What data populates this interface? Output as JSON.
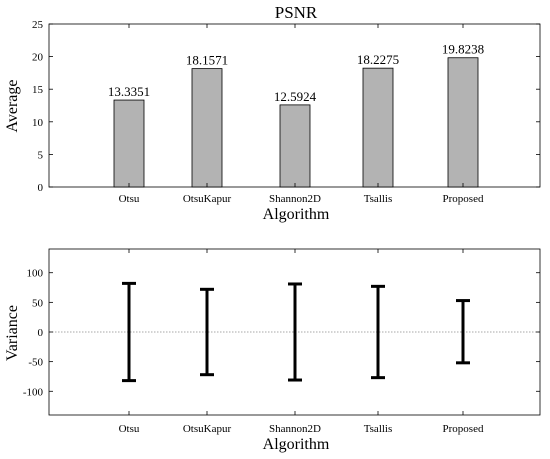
{
  "chart_data": [
    {
      "type": "bar",
      "title": "PSNR",
      "xlabel": "Algorithm",
      "ylabel": "Average",
      "categories": [
        "Otsu",
        "OtsuKapur",
        "Shannon2D",
        "Tsallis",
        "Proposed"
      ],
      "values": [
        13.3351,
        18.1571,
        12.5924,
        18.2275,
        19.8238
      ],
      "data_labels": [
        "13.3351",
        "18.1571",
        "12.5924",
        "18.2275",
        "19.8238"
      ],
      "ylim": [
        0,
        25
      ],
      "yticks": [
        0,
        5,
        10,
        15,
        20,
        25
      ],
      "bar_color": "#b3b3b3",
      "grid": false
    },
    {
      "type": "errorbar",
      "title": "",
      "xlabel": "Algorithm",
      "ylabel": "Variance",
      "categories": [
        "Otsu",
        "OtsuKapur",
        "Shannon2D",
        "Tsallis",
        "Proposed"
      ],
      "center": [
        0,
        0,
        0,
        0,
        0
      ],
      "lower": [
        -82,
        -72,
        -81,
        -77,
        -52
      ],
      "upper": [
        82,
        72,
        81,
        77,
        53
      ],
      "ylim": [
        -140,
        140
      ],
      "yticks": [
        -100,
        -50,
        0,
        50,
        100
      ],
      "zero_line": true,
      "grid": false
    }
  ]
}
